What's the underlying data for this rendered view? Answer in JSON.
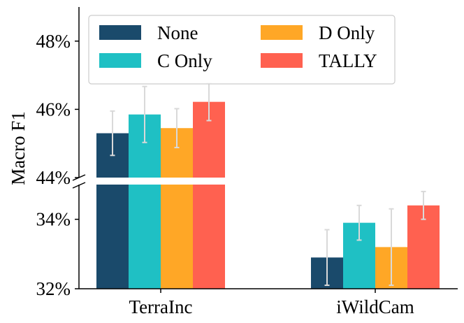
{
  "chart_data": {
    "type": "bar",
    "title": "",
    "xlabel": "",
    "ylabel": "Macro F1",
    "categories": [
      "TerraInc",
      "iWildCam"
    ],
    "series": [
      {
        "name": "None",
        "color": "#1a4a6b",
        "values": [
          45.3,
          32.9
        ],
        "errors": [
          0.65,
          0.8
        ]
      },
      {
        "name": "C Only",
        "color": "#1fc0c4",
        "values": [
          45.85,
          33.9
        ],
        "errors": [
          0.82,
          0.5
        ]
      },
      {
        "name": "D Only",
        "color": "#ffa726",
        "values": [
          45.45,
          33.2
        ],
        "errors": [
          0.57,
          1.1
        ]
      },
      {
        "name": "TALLY",
        "color": "#ff6150",
        "values": [
          46.22,
          34.4
        ],
        "errors": [
          0.55,
          0.4
        ]
      }
    ],
    "y_axis_broken": true,
    "upper_ylim": [
      44,
      49
    ],
    "lower_ylim": [
      32,
      35
    ],
    "upper_ticks": [
      44,
      46,
      48
    ],
    "lower_ticks": [
      32,
      34
    ],
    "upper_tick_labels": [
      "44%",
      "46%",
      "48%"
    ],
    "lower_tick_labels": [
      "32%",
      "34%"
    ],
    "error_bar_color": "#d9d9d9",
    "legend_position": "top-left",
    "legend_columns": 2,
    "grid": false
  }
}
